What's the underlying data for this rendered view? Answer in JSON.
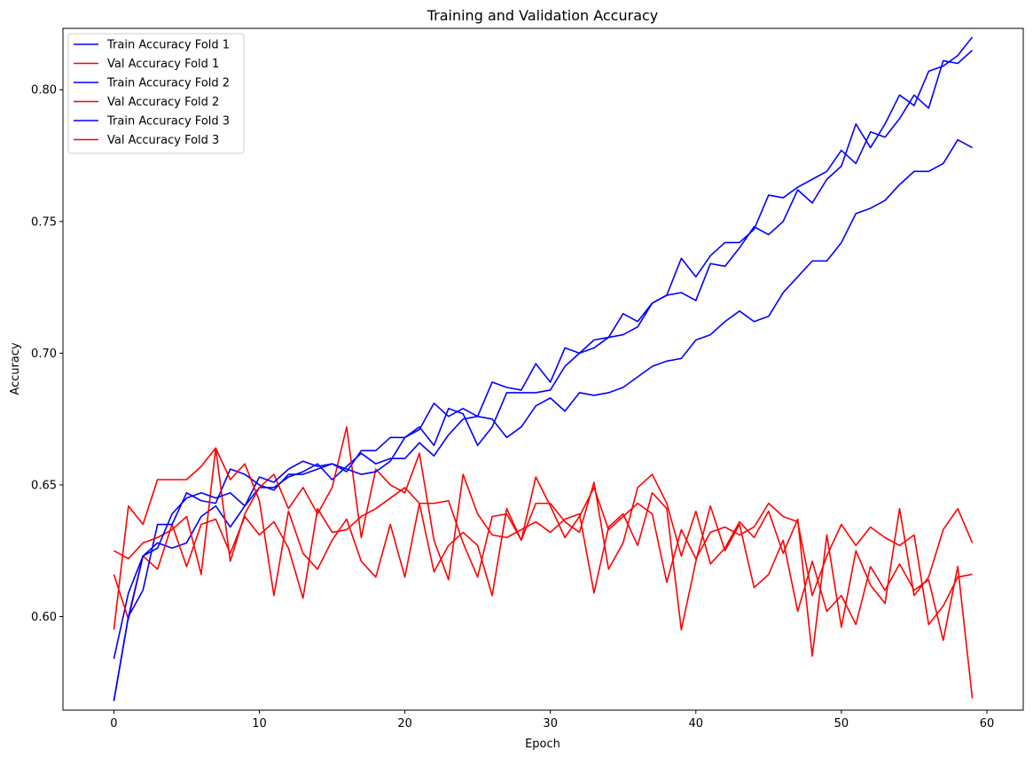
{
  "chart_data": {
    "type": "line",
    "title": "Training and Validation Accuracy",
    "xlabel": "Epoch",
    "ylabel": "Accuracy",
    "xlim": [
      -3.5,
      62.5
    ],
    "ylim": [
      0.5645,
      0.8233
    ],
    "xticks": [
      0,
      10,
      20,
      30,
      40,
      50,
      60
    ],
    "yticks": [
      0.6,
      0.65,
      0.7,
      0.75,
      0.8
    ],
    "xtick_labels": [
      "0",
      "10",
      "20",
      "30",
      "40",
      "50",
      "60"
    ],
    "ytick_labels": [
      "0.60",
      "0.65",
      "0.70",
      "0.75",
      "0.80"
    ],
    "grid": false,
    "legend_position": "top-left",
    "colors": {
      "train": "#0000ff",
      "val": "#ff0000"
    },
    "x": [
      0,
      1,
      2,
      3,
      4,
      5,
      6,
      7,
      8,
      9,
      10,
      11,
      12,
      13,
      14,
      15,
      16,
      17,
      18,
      19,
      20,
      21,
      22,
      23,
      24,
      25,
      26,
      27,
      28,
      29,
      30,
      31,
      32,
      33,
      34,
      35,
      36,
      37,
      38,
      39,
      40,
      41,
      42,
      43,
      44,
      45,
      46,
      47,
      48,
      49,
      50,
      51,
      52,
      53,
      54,
      55,
      56,
      57,
      58,
      59
    ],
    "series": [
      {
        "name": "Train Accuracy Fold 1",
        "color": "#0000ff",
        "values": [
          0.584,
          0.609,
          0.623,
          0.628,
          0.626,
          0.628,
          0.638,
          0.642,
          0.634,
          0.642,
          0.649,
          0.649,
          0.653,
          0.655,
          0.658,
          0.652,
          0.657,
          0.662,
          0.658,
          0.66,
          0.66,
          0.666,
          0.661,
          0.669,
          0.675,
          0.676,
          0.689,
          0.687,
          0.686,
          0.696,
          0.689,
          0.702,
          0.7,
          0.702,
          0.706,
          0.707,
          0.71,
          0.719,
          0.722,
          0.723,
          0.72,
          0.734,
          0.733,
          0.74,
          0.748,
          0.745,
          0.75,
          0.762,
          0.757,
          0.766,
          0.771,
          0.787,
          0.778,
          0.787,
          0.798,
          0.794,
          0.807,
          0.809,
          0.813,
          0.82
        ]
      },
      {
        "name": "Val Accuracy Fold 1",
        "color": "#ff0000",
        "values": [
          0.616,
          0.599,
          0.623,
          0.618,
          0.635,
          0.619,
          0.635,
          0.637,
          0.624,
          0.638,
          0.631,
          0.636,
          0.626,
          0.607,
          0.641,
          0.632,
          0.633,
          0.638,
          0.641,
          0.645,
          0.649,
          0.643,
          0.617,
          0.627,
          0.632,
          0.627,
          0.608,
          0.641,
          0.629,
          0.643,
          0.643,
          0.636,
          0.632,
          0.651,
          0.618,
          0.628,
          0.649,
          0.654,
          0.643,
          0.623,
          0.64,
          0.62,
          0.626,
          0.636,
          0.63,
          0.64,
          0.624,
          0.637,
          0.585,
          0.631,
          0.596,
          0.625,
          0.612,
          0.605,
          0.641,
          0.608,
          0.615,
          0.633,
          0.641,
          0.628
        ]
      },
      {
        "name": "Train Accuracy Fold 2",
        "color": "#0000ff",
        "values": [
          0.568,
          0.6,
          0.61,
          0.635,
          0.635,
          0.647,
          0.644,
          0.643,
          0.656,
          0.654,
          0.65,
          0.648,
          0.654,
          0.654,
          0.656,
          0.658,
          0.655,
          0.663,
          0.663,
          0.668,
          0.668,
          0.672,
          0.665,
          0.679,
          0.677,
          0.665,
          0.672,
          0.685,
          0.685,
          0.685,
          0.686,
          0.695,
          0.7,
          0.705,
          0.706,
          0.715,
          0.712,
          0.719,
          0.722,
          0.736,
          0.729,
          0.737,
          0.742,
          0.742,
          0.747,
          0.76,
          0.759,
          0.763,
          0.766,
          0.769,
          0.777,
          0.772,
          0.784,
          0.782,
          0.789,
          0.798,
          0.793,
          0.811,
          0.81,
          0.815
        ]
      },
      {
        "name": "Val Accuracy Fold 2",
        "color": "#ff0000",
        "values": [
          0.625,
          0.622,
          0.628,
          0.63,
          0.633,
          0.638,
          0.616,
          0.664,
          0.621,
          0.639,
          0.649,
          0.654,
          0.641,
          0.649,
          0.639,
          0.649,
          0.672,
          0.63,
          0.656,
          0.65,
          0.647,
          0.662,
          0.629,
          0.614,
          0.654,
          0.639,
          0.631,
          0.63,
          0.633,
          0.636,
          0.632,
          0.637,
          0.639,
          0.609,
          0.634,
          0.639,
          0.627,
          0.647,
          0.641,
          0.595,
          0.621,
          0.642,
          0.625,
          0.635,
          0.611,
          0.616,
          0.629,
          0.602,
          0.621,
          0.602,
          0.608,
          0.597,
          0.619,
          0.61,
          0.62,
          0.61,
          0.614,
          0.591,
          0.619,
          0.569
        ]
      },
      {
        "name": "Train Accuracy Fold 3",
        "color": "#0000ff",
        "values": [
          0.568,
          0.6,
          0.623,
          0.626,
          0.639,
          0.645,
          0.647,
          0.645,
          0.647,
          0.642,
          0.653,
          0.651,
          0.656,
          0.659,
          0.657,
          0.658,
          0.656,
          0.654,
          0.655,
          0.659,
          0.668,
          0.671,
          0.681,
          0.676,
          0.679,
          0.676,
          0.675,
          0.668,
          0.672,
          0.68,
          0.683,
          0.678,
          0.685,
          0.684,
          0.685,
          0.687,
          0.691,
          0.695,
          0.697,
          0.698,
          0.705,
          0.707,
          0.712,
          0.716,
          0.712,
          0.714,
          0.723,
          0.729,
          0.735,
          0.735,
          0.742,
          0.753,
          0.755,
          0.758,
          0.764,
          0.769,
          0.769,
          0.772,
          0.781,
          0.778
        ]
      },
      {
        "name": "Val Accuracy Fold 3",
        "color": "#ff0000",
        "values": [
          0.595,
          0.642,
          0.635,
          0.652,
          0.652,
          0.652,
          0.657,
          0.664,
          0.652,
          0.658,
          0.644,
          0.608,
          0.64,
          0.624,
          0.618,
          0.629,
          0.637,
          0.621,
          0.615,
          0.635,
          0.615,
          0.643,
          0.643,
          0.644,
          0.628,
          0.615,
          0.638,
          0.639,
          0.629,
          0.653,
          0.642,
          0.63,
          0.638,
          0.649,
          0.633,
          0.638,
          0.643,
          0.639,
          0.613,
          0.633,
          0.622,
          0.632,
          0.634,
          0.631,
          0.634,
          0.643,
          0.638,
          0.636,
          0.608,
          0.623,
          0.635,
          0.627,
          0.634,
          0.63,
          0.627,
          0.631,
          0.597,
          0.604,
          0.615,
          0.616
        ]
      }
    ]
  }
}
